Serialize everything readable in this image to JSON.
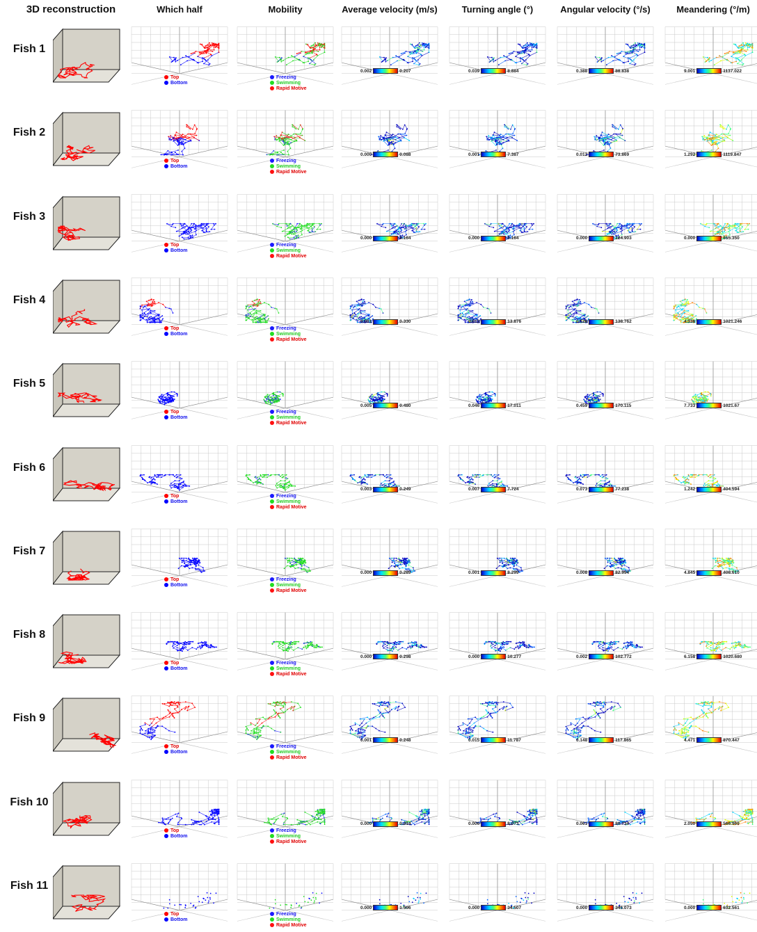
{
  "columns": [
    "3D reconstruction",
    "Which half",
    "Mobility",
    "Average velocity (m/s)",
    "Turning angle (°)",
    "Angular velocity (°/s)",
    "Meandering (°/m)"
  ],
  "legends": {
    "which_half": [
      "Top",
      "Bottom"
    ],
    "mobility": [
      "Freezing",
      "Swimming",
      "Rapid Motive"
    ]
  },
  "colors": {
    "top": "#ff0000",
    "bottom": "#0000ff",
    "freezing": "#1a1aff",
    "swimming": "#22dd22",
    "rapid": "#ff1010",
    "reconstruction_line": "#ff0000",
    "reconstruction_wall": "#d5d2c8"
  },
  "rows": [
    {
      "label": "Fish 1",
      "avg_velocity": [
        "0.002",
        "0.207"
      ],
      "turning_angle": [
        "0.039",
        "8.884"
      ],
      "angular_velocity": [
        "0.388",
        "88.838"
      ],
      "meandering": [
        "9.001",
        "1137.022"
      ]
    },
    {
      "label": "Fish 2",
      "avg_velocity": [
        "0.000",
        "0.088"
      ],
      "turning_angle": [
        "0.001",
        "7.387"
      ],
      "angular_velocity": [
        "0.012",
        "73.869"
      ],
      "meandering": [
        "1.292",
        "1119.847"
      ]
    },
    {
      "label": "Fish 3",
      "avg_velocity": [
        "0.000",
        "0.164"
      ],
      "turning_angle": [
        "0.000",
        "0.164"
      ],
      "angular_velocity": [
        "0.000",
        "124.903"
      ],
      "meandering": [
        "0.000",
        "655.350"
      ]
    },
    {
      "label": "Fish 4",
      "avg_velocity": [
        "0.001",
        "0.330"
      ],
      "turning_angle": [
        "0.013",
        "13.876"
      ],
      "angular_velocity": [
        "0.128",
        "138.762"
      ],
      "meandering": [
        "4.336",
        "1021.246"
      ]
    },
    {
      "label": "Fish 5",
      "avg_velocity": [
        "0.005",
        "0.480"
      ],
      "turning_angle": [
        "0.046",
        "17.011"
      ],
      "angular_velocity": [
        "0.459",
        "170.115"
      ],
      "meandering": [
        "7.733",
        "1021.67"
      ]
    },
    {
      "label": "Fish 6",
      "avg_velocity": [
        "0.003",
        "0.249"
      ],
      "turning_angle": [
        "0.007",
        "7.724"
      ],
      "angular_velocity": [
        "0.073",
        "77.238"
      ],
      "meandering": [
        "1.242",
        "404.594"
      ]
    },
    {
      "label": "Fish 7",
      "avg_velocity": [
        "0.000",
        "0.289"
      ],
      "turning_angle": [
        "0.001",
        "8.299"
      ],
      "angular_velocity": [
        "0.008",
        "82.994"
      ],
      "meandering": [
        "4.845",
        "408.610"
      ]
    },
    {
      "label": "Fish 8",
      "avg_velocity": [
        "0.000",
        "0.298"
      ],
      "turning_angle": [
        "0.000",
        "10.277"
      ],
      "angular_velocity": [
        "0.002",
        "102.772"
      ],
      "meandering": [
        "6.158",
        "1020.680"
      ]
    },
    {
      "label": "Fish 9",
      "avg_velocity": [
        "0.001",
        "0.248"
      ],
      "turning_angle": [
        "0.015",
        "11.787"
      ],
      "angular_velocity": [
        "0.148",
        "117.865"
      ],
      "meandering": [
        "4.471",
        "870.447"
      ]
    },
    {
      "label": "Fish 10",
      "avg_velocity": [
        "0.000",
        "0.314"
      ],
      "turning_angle": [
        "0.006",
        "8.073"
      ],
      "angular_velocity": [
        "0.061",
        "80.734"
      ],
      "meandering": [
        "2.050",
        "566.969"
      ]
    },
    {
      "label": "Fish 11",
      "avg_velocity": [
        "0.000",
        "1.596"
      ],
      "turning_angle": [
        "0.000",
        "34.507"
      ],
      "angular_velocity": [
        "0.000",
        "345.073"
      ],
      "meandering": [
        "0.000",
        "632.561"
      ]
    }
  ]
}
